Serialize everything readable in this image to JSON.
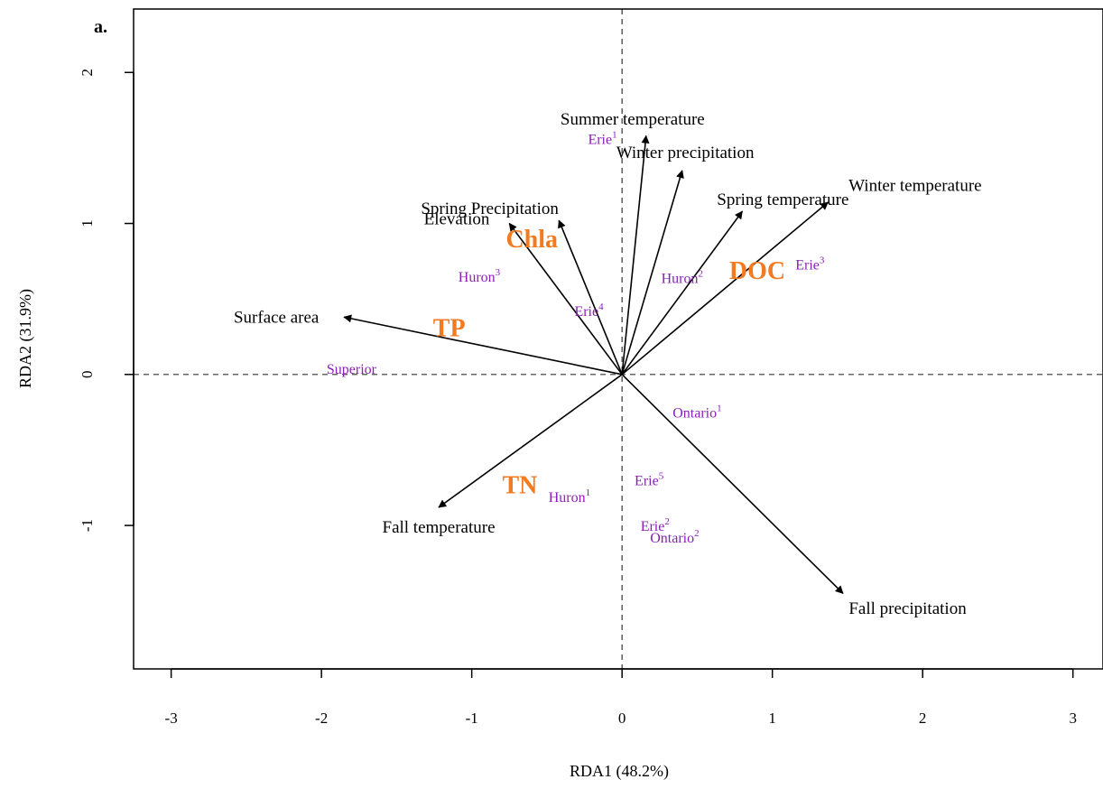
{
  "chart_data": {
    "type": "scatter",
    "panel_label": "a.",
    "xlabel": "RDA1 (48.2%)",
    "ylabel": "RDA2 (31.9%)",
    "xlim": [
      -3.25,
      3.2
    ],
    "ylim": [
      -1.95,
      2.42
    ],
    "x_ticks": [
      -3,
      -2,
      -1,
      0,
      1,
      2,
      3
    ],
    "x_tick_labels": [
      "-3",
      "-2",
      "-1",
      "0",
      "1",
      "2",
      "3"
    ],
    "y_ticks": [
      -1,
      0,
      1,
      2
    ],
    "y_tick_labels": [
      "-1",
      "0",
      "1",
      "2"
    ],
    "reference_lines": {
      "x": 0,
      "y": 0,
      "style": "dashed"
    },
    "colors": {
      "arrow": "#000000",
      "response": "#f47a20",
      "site": "#8a1fb8"
    },
    "arrows": [
      {
        "label": "Summer temperature",
        "x": 0.16,
        "y": 1.58,
        "lx": 0.07,
        "ly": 1.68
      },
      {
        "label": "Winter precipitation",
        "x": 0.4,
        "y": 1.35,
        "lx": 0.42,
        "ly": 1.46
      },
      {
        "label": "Winter temperature",
        "x": 1.37,
        "y": 1.14,
        "lx": 1.95,
        "ly": 1.24
      },
      {
        "label": "Spring temperature",
        "x": 0.8,
        "y": 1.08,
        "lx": 1.07,
        "ly": 1.15
      },
      {
        "label": "Spring Precipitation",
        "x": -0.42,
        "y": 1.02,
        "lx": -0.88,
        "ly": 1.09
      },
      {
        "label": "Elevation",
        "x": -0.75,
        "y": 1.0,
        "lx": -1.1,
        "ly": 1.02
      },
      {
        "label": "Surface area",
        "x": -1.85,
        "y": 0.38,
        "lx": -2.3,
        "ly": 0.37
      },
      {
        "label": "Fall temperature",
        "x": -1.22,
        "y": -0.88,
        "lx": -1.22,
        "ly": -1.02
      },
      {
        "label": "Fall precipitation",
        "x": 1.47,
        "y": -1.45,
        "lx": 1.9,
        "ly": -1.56
      }
    ],
    "responses": [
      {
        "label": "Chla",
        "x": -0.6,
        "y": 0.88
      },
      {
        "label": "DOC",
        "x": 0.9,
        "y": 0.67
      },
      {
        "label": "TP",
        "x": -1.15,
        "y": 0.29
      },
      {
        "label": "TN",
        "x": -0.68,
        "y": -0.75
      }
    ],
    "sites": [
      {
        "label": "Erie",
        "sup": "1",
        "x": -0.13,
        "y": 1.55
      },
      {
        "label": "Erie",
        "sup": "3",
        "x": 1.25,
        "y": 0.72
      },
      {
        "label": "Huron",
        "sup": "3",
        "x": -0.95,
        "y": 0.64
      },
      {
        "label": "Huron",
        "sup": "2",
        "x": 0.4,
        "y": 0.63
      },
      {
        "label": "Erie",
        "sup": "4",
        "x": -0.22,
        "y": 0.41
      },
      {
        "label": "Superior",
        "sup": "",
        "x": -1.8,
        "y": 0.03
      },
      {
        "label": "Ontario",
        "sup": "1",
        "x": 0.5,
        "y": -0.26
      },
      {
        "label": "Erie",
        "sup": "5",
        "x": 0.18,
        "y": -0.71
      },
      {
        "label": "Huron",
        "sup": "1",
        "x": -0.35,
        "y": -0.82
      },
      {
        "label": "Erie",
        "sup": "2",
        "x": 0.22,
        "y": -1.01
      },
      {
        "label": "Ontario",
        "sup": "2",
        "x": 0.35,
        "y": -1.09
      }
    ]
  }
}
